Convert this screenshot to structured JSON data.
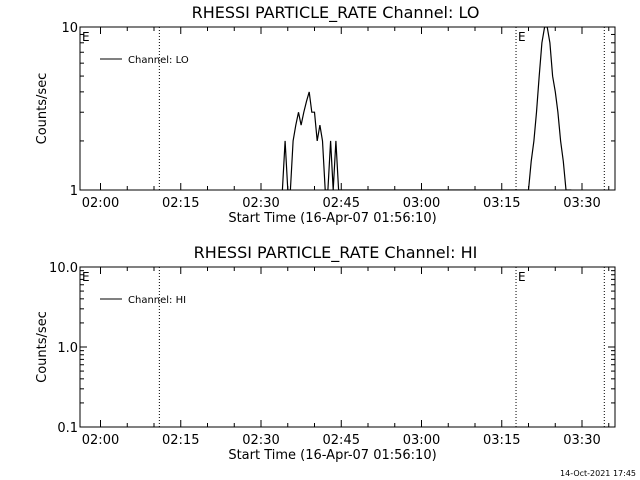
{
  "chart_data": [
    {
      "type": "line",
      "title": "RHESSI PARTICLE_RATE Channel: LO",
      "xlabel": "Start Time (16-Apr-07 01:56:10)",
      "ylabel": "Counts/sec",
      "yscale": "log",
      "ylim": [
        1,
        10
      ],
      "xlim": [
        "01:56:10",
        "03:36:10"
      ],
      "y_ticks": [
        "1",
        "10"
      ],
      "x_ticks": [
        "02:00",
        "02:15",
        "02:30",
        "02:45",
        "03:00",
        "03:15",
        "03:30"
      ],
      "grid": false,
      "legend_position": "top-left",
      "series": [
        {
          "name": "Channel: LO",
          "color": "#000000",
          "x": [
            "02:34:00",
            "02:34:30",
            "02:35:00",
            "02:35:30",
            "02:36:00",
            "02:36:30",
            "02:37:00",
            "02:37:30",
            "02:38:00",
            "02:38:30",
            "02:39:00",
            "02:39:30",
            "02:40:00",
            "02:40:30",
            "02:41:00",
            "02:41:30",
            "02:42:00",
            "02:42:30",
            "02:43:00",
            "02:43:30",
            "02:44:00",
            "02:44:30",
            "02:45:00",
            "02:45:30",
            "02:46:00",
            "03:20:00",
            "03:20:30",
            "03:21:00",
            "03:21:30",
            "03:22:00",
            "03:22:30",
            "03:23:00",
            "03:23:30",
            "03:24:00",
            "03:24:30",
            "03:25:00",
            "03:25:30",
            "03:26:00",
            "03:26:30",
            "03:27:00",
            "03:27:30",
            "03:28:00"
          ],
          "values": [
            1,
            2,
            1,
            1,
            2,
            2.5,
            3,
            2.5,
            3,
            3.5,
            4,
            3,
            3,
            2,
            2.5,
            2,
            1,
            1,
            2,
            1,
            2,
            1,
            1,
            1,
            1,
            1,
            1.5,
            2,
            3,
            5,
            8,
            10,
            10,
            8,
            5,
            4,
            3,
            2,
            1.5,
            1,
            1,
            1
          ]
        }
      ],
      "annotations": [
        "E",
        "E"
      ],
      "event_lines": [
        "02:11:00",
        "03:17:40",
        "03:34:10"
      ]
    },
    {
      "type": "line",
      "title": "RHESSI PARTICLE_RATE Channel: HI",
      "xlabel": "Start Time (16-Apr-07 01:56:10)",
      "ylabel": "Counts/sec",
      "yscale": "log",
      "ylim": [
        0.1,
        10
      ],
      "xlim": [
        "01:56:10",
        "03:36:10"
      ],
      "y_ticks": [
        "0.1",
        "1.0",
        "10.0"
      ],
      "x_ticks": [
        "02:00",
        "02:15",
        "02:30",
        "02:45",
        "03:00",
        "03:15",
        "03:30"
      ],
      "grid": false,
      "legend_position": "top-left",
      "series": [
        {
          "name": "Channel: HI",
          "color": "#000000",
          "x": [],
          "values": []
        }
      ],
      "annotations": [
        "E",
        "E"
      ],
      "event_lines": [
        "02:11:00",
        "03:17:40",
        "03:34:10"
      ]
    }
  ],
  "footer": {
    "timestamp": "14-Oct-2021 17:45"
  }
}
